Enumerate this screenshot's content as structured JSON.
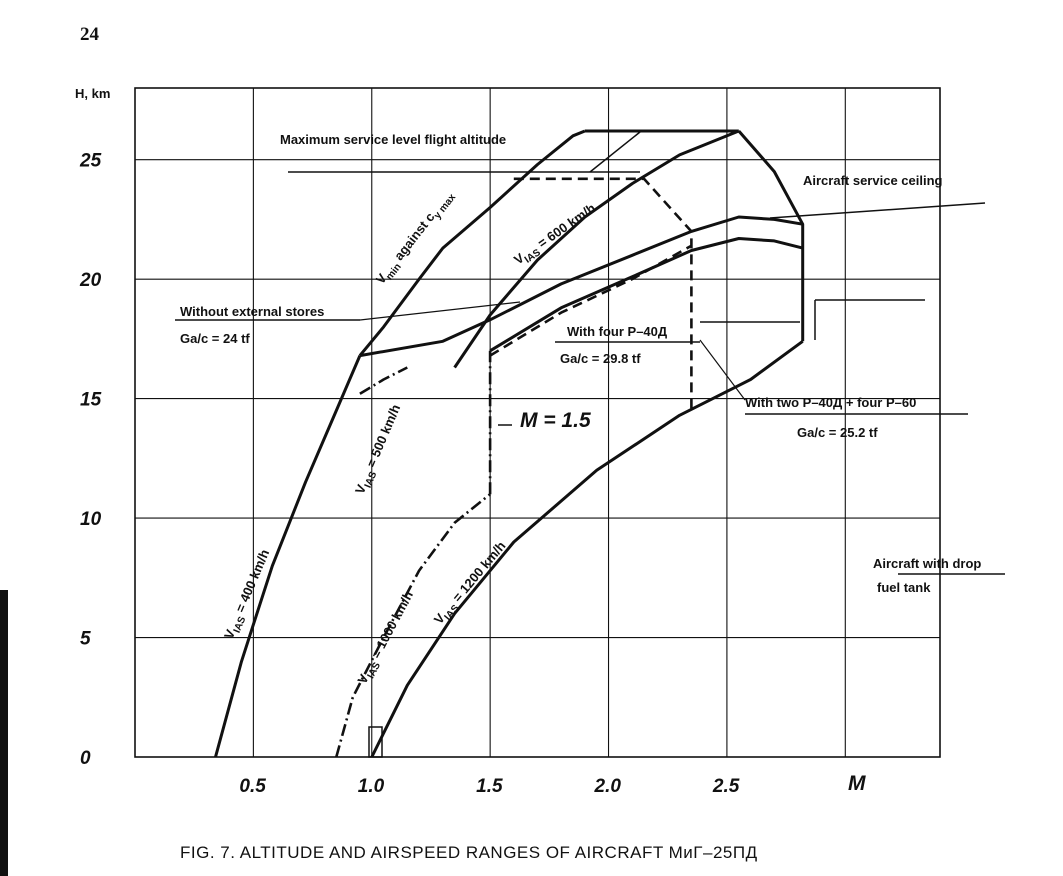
{
  "page_number": "24",
  "caption": "FIG. 7. ALTITUDE AND AIRSPEED RANGES OF AIRCRAFT МиГ–25ПД",
  "chart_data": {
    "type": "line",
    "title": "",
    "xlabel": "M",
    "ylabel": "H, km",
    "xlim": [
      0.0,
      3.4
    ],
    "ylim": [
      0,
      28
    ],
    "grid": true,
    "x_ticks": [
      "0.5",
      "1.0",
      "1.5",
      "2.0",
      "2.5"
    ],
    "x_tick_values": [
      0.5,
      1.0,
      1.5,
      2.0,
      2.5
    ],
    "y_ticks": [
      "0",
      "5",
      "10",
      "15",
      "20",
      "25"
    ],
    "y_tick_values": [
      0,
      5,
      10,
      15,
      20,
      25
    ],
    "y_tick_labels_printed": [
      "0",
      "5",
      "10",
      "15",
      "20",
      "25"
    ],
    "series": [
      {
        "name": "VIAS = 400 km/h",
        "style": "solid",
        "points": [
          [
            0.34,
            0
          ],
          [
            0.45,
            4
          ],
          [
            0.58,
            8
          ],
          [
            0.72,
            11.5
          ],
          [
            0.85,
            14.5
          ],
          [
            0.95,
            16.8
          ]
        ]
      },
      {
        "name": "VIAS = 500 km/h",
        "style": "dashdot",
        "points": [
          [
            0.95,
            15.2
          ],
          [
            1.05,
            15.8
          ],
          [
            1.15,
            16.3
          ]
        ]
      },
      {
        "name": "VIAS = 1000 km/h",
        "style": "dashdot",
        "points": [
          [
            0.85,
            0
          ],
          [
            0.92,
            2.5
          ],
          [
            1.05,
            5
          ],
          [
            1.2,
            7.8
          ],
          [
            1.35,
            9.8
          ],
          [
            1.5,
            11
          ]
        ]
      },
      {
        "name": "VIAS = 1200 km/h",
        "style": "solid",
        "points": [
          [
            1.0,
            0
          ],
          [
            1.15,
            3
          ],
          [
            1.35,
            6
          ],
          [
            1.6,
            9
          ],
          [
            1.95,
            12
          ],
          [
            2.3,
            14.3
          ],
          [
            2.6,
            15.8
          ],
          [
            2.82,
            17.4
          ]
        ]
      },
      {
        "name": "Vmin against cy max",
        "style": "solid",
        "points": [
          [
            0.95,
            16.8
          ],
          [
            1.05,
            18
          ],
          [
            1.2,
            20
          ],
          [
            1.3,
            21.3
          ],
          [
            1.5,
            23
          ],
          [
            1.7,
            24.8
          ],
          [
            1.85,
            26
          ],
          [
            1.9,
            26.2
          ]
        ]
      },
      {
        "name": "Maximum service level flight altitude",
        "style": "solid",
        "points": [
          [
            1.9,
            26.2
          ],
          [
            2.55,
            26.2
          ]
        ]
      },
      {
        "name": "Aircraft service ceiling",
        "style": "solid",
        "points": [
          [
            2.55,
            26.2
          ],
          [
            2.7,
            24.5
          ],
          [
            2.82,
            22.3
          ],
          [
            2.82,
            17.4
          ]
        ]
      },
      {
        "name": "VIAS = 600 km/h",
        "style": "solid",
        "points": [
          [
            1.35,
            16.3
          ],
          [
            1.5,
            18.5
          ],
          [
            1.7,
            20.8
          ],
          [
            1.9,
            22.6
          ],
          [
            2.1,
            24
          ],
          [
            2.3,
            25.2
          ],
          [
            2.55,
            26.2
          ]
        ]
      },
      {
        "name": "Without external stores Ga/c = 24 tf",
        "style": "solid",
        "points": [
          [
            0.95,
            16.8
          ],
          [
            1.3,
            17.4
          ],
          [
            1.5,
            18.3
          ],
          [
            1.8,
            19.8
          ],
          [
            2.1,
            21
          ],
          [
            2.35,
            22
          ],
          [
            2.55,
            22.6
          ],
          [
            2.7,
            22.5
          ],
          [
            2.82,
            22.3
          ]
        ]
      },
      {
        "name": "With four Р–40Д Ga/c = 29.8 tf",
        "style": "solid",
        "points": [
          [
            1.5,
            17
          ],
          [
            1.8,
            18.8
          ],
          [
            2.1,
            20.1
          ],
          [
            2.35,
            21.2
          ],
          [
            2.55,
            21.7
          ],
          [
            2.7,
            21.6
          ],
          [
            2.82,
            21.3
          ]
        ]
      },
      {
        "name": "With two Р–40Д + four Р–60 Ga/c = 25.2 tf",
        "style": "dashed",
        "points": [
          [
            1.5,
            16.8
          ],
          [
            1.8,
            18.6
          ],
          [
            2.1,
            20
          ],
          [
            2.35,
            21.4
          ]
        ]
      },
      {
        "name": "Aircraft with drop fuel tank",
        "style": "dashed",
        "points": [
          [
            1.6,
            24.2
          ],
          [
            2.15,
            24.2
          ],
          [
            2.35,
            22
          ],
          [
            2.35,
            14.5
          ]
        ]
      },
      {
        "name": "M = 1.5",
        "style": "dashdot",
        "points": [
          [
            1.5,
            11
          ],
          [
            1.5,
            17
          ]
        ]
      }
    ],
    "annotations": [
      "Maximum service level flight altitude",
      "Aircraft service ceiling",
      "Without external stores",
      "Ga/c = 24 tf",
      "With four Р–40Д",
      "Ga/c = 29.8 tf",
      "With two Р–40Д + four Р–60",
      "Ga/c = 25.2 tf",
      "M = 1.5",
      "Aircraft with drop",
      "fuel tank"
    ]
  }
}
